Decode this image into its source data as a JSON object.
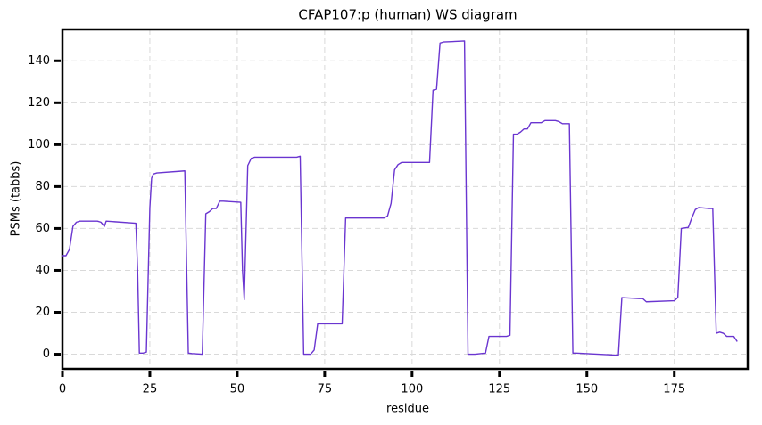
{
  "chart_data": {
    "type": "line",
    "title": "CFAP107:p (human) WS diagram",
    "xlabel": "residue",
    "ylabel": "PSMs (tabbs)",
    "color": "#6a35d0",
    "grid": true,
    "xlim": [
      0,
      196
    ],
    "ylim": [
      -7,
      155
    ],
    "xticks": [
      0,
      25,
      50,
      75,
      100,
      125,
      150,
      175
    ],
    "yticks": [
      0,
      20,
      40,
      60,
      80,
      100,
      120,
      140
    ],
    "x": [
      0,
      1,
      2,
      3,
      4,
      5,
      10,
      11,
      12,
      12.5,
      21,
      21.5,
      22,
      23,
      24,
      25,
      25.5,
      26,
      27,
      35,
      36,
      37,
      40,
      41,
      42,
      43,
      44,
      45,
      46,
      51,
      51.5,
      52,
      53,
      54,
      55,
      67,
      68,
      69,
      71,
      72,
      73,
      80,
      81,
      92,
      93,
      94,
      95,
      96,
      97,
      105,
      106,
      107,
      108,
      109,
      115,
      116,
      118,
      121,
      122,
      127,
      128,
      129,
      130,
      131,
      132,
      133,
      134,
      137,
      138,
      141,
      142,
      143,
      145,
      146,
      147,
      159,
      160,
      165,
      166,
      167,
      175,
      176,
      177,
      179,
      180,
      181,
      182,
      185,
      186,
      187,
      188,
      189,
      190,
      192,
      193
    ],
    "values": [
      47,
      47,
      50,
      61,
      63,
      63.5,
      63.5,
      63,
      61,
      63.5,
      62.5,
      40,
      0.5,
      0.5,
      1,
      70,
      84,
      86,
      86.5,
      87.5,
      0.5,
      0.3,
      0,
      67,
      68,
      69.5,
      69.5,
      73,
      73,
      72.5,
      40,
      26,
      90,
      93.5,
      94,
      94,
      94.5,
      0,
      0,
      2,
      14.5,
      14.5,
      65,
      65,
      66,
      72,
      88,
      90.5,
      91.5,
      91.5,
      126,
      126.5,
      148.5,
      149,
      149.5,
      0,
      0,
      0.5,
      8.5,
      8.5,
      9,
      105,
      105,
      106,
      107.5,
      107.5,
      110.5,
      110.5,
      111.5,
      111.5,
      111,
      110,
      110,
      0.5,
      0.5,
      -0.5,
      27,
      26.5,
      26.5,
      25,
      25.5,
      27,
      60,
      60.5,
      65,
      69,
      70,
      69.5,
      69.5,
      10,
      10.5,
      10,
      8.5,
      8.5,
      6
    ]
  }
}
